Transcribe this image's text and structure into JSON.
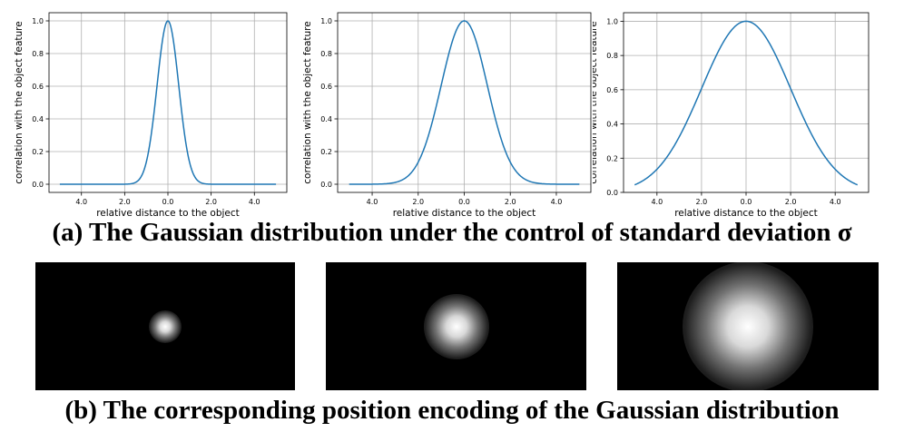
{
  "captions": {
    "a": "(a) The Gaussian distribution under the control of standard deviation σ",
    "b": "(b) The corresponding position encoding of the Gaussian distribution"
  },
  "colors": {
    "line": "#1f77b4",
    "grid": "#b0b0b0",
    "heatmap_bg": "#000000",
    "glow": "#ffffff"
  },
  "chart_data": [
    {
      "type": "line",
      "title": "",
      "xlabel": "relative distance to the object",
      "ylabel": "correlation with the object feature",
      "xlim": [
        -5.5,
        5.5
      ],
      "ylim": [
        -0.05,
        1.05
      ],
      "xticks": [
        -4,
        -2,
        0,
        2,
        4
      ],
      "xtick_labels": [
        "4.0",
        "2.0",
        "0.0",
        "2.0",
        "4.0"
      ],
      "yticks": [
        0.0,
        0.2,
        0.4,
        0.6,
        0.8,
        1.0
      ],
      "ytick_labels": [
        "0.0",
        "0.2",
        "0.4",
        "0.6",
        "0.8",
        "1.0"
      ],
      "grid": true,
      "series": [
        {
          "x_range": [
            -5,
            5
          ],
          "peak_at": 0,
          "peak": 1.0,
          "sigma": 0.5
        }
      ]
    },
    {
      "type": "line",
      "title": "",
      "xlabel": "relative distance to the object",
      "ylabel": "correlation with the object feature",
      "xlim": [
        -5.5,
        5.5
      ],
      "ylim": [
        -0.05,
        1.05
      ],
      "xticks": [
        -4,
        -2,
        0,
        2,
        4
      ],
      "xtick_labels": [
        "4.0",
        "2.0",
        "0.0",
        "2.0",
        "4.0"
      ],
      "yticks": [
        0.0,
        0.2,
        0.4,
        0.6,
        0.8,
        1.0
      ],
      "ytick_labels": [
        "0.0",
        "0.2",
        "0.4",
        "0.6",
        "0.8",
        "1.0"
      ],
      "grid": true,
      "series": [
        {
          "x_range": [
            -5,
            5
          ],
          "peak_at": 0,
          "peak": 1.0,
          "sigma": 1.0
        }
      ]
    },
    {
      "type": "line",
      "title": "",
      "xlabel": "relative distance to the object",
      "ylabel": "correlation with the object feature",
      "xlim": [
        -5.5,
        5.5
      ],
      "ylim": [
        0.0,
        1.05
      ],
      "xticks": [
        -4,
        -2,
        0,
        2,
        4
      ],
      "xtick_labels": [
        "4.0",
        "2.0",
        "0.0",
        "2.0",
        "4.0"
      ],
      "yticks": [
        0.0,
        0.2,
        0.4,
        0.6,
        0.8,
        1.0
      ],
      "ytick_labels": [
        "0.0",
        "0.2",
        "0.4",
        "0.6",
        "0.8",
        "1.0"
      ],
      "grid": true,
      "series": [
        {
          "x_range": [
            -5,
            5
          ],
          "peak_at": 0,
          "peak": 1.0,
          "sigma": 2.0
        }
      ]
    }
  ],
  "heatmaps": [
    {
      "sigma": 0.5
    },
    {
      "sigma": 1.0
    },
    {
      "sigma": 2.0
    }
  ]
}
